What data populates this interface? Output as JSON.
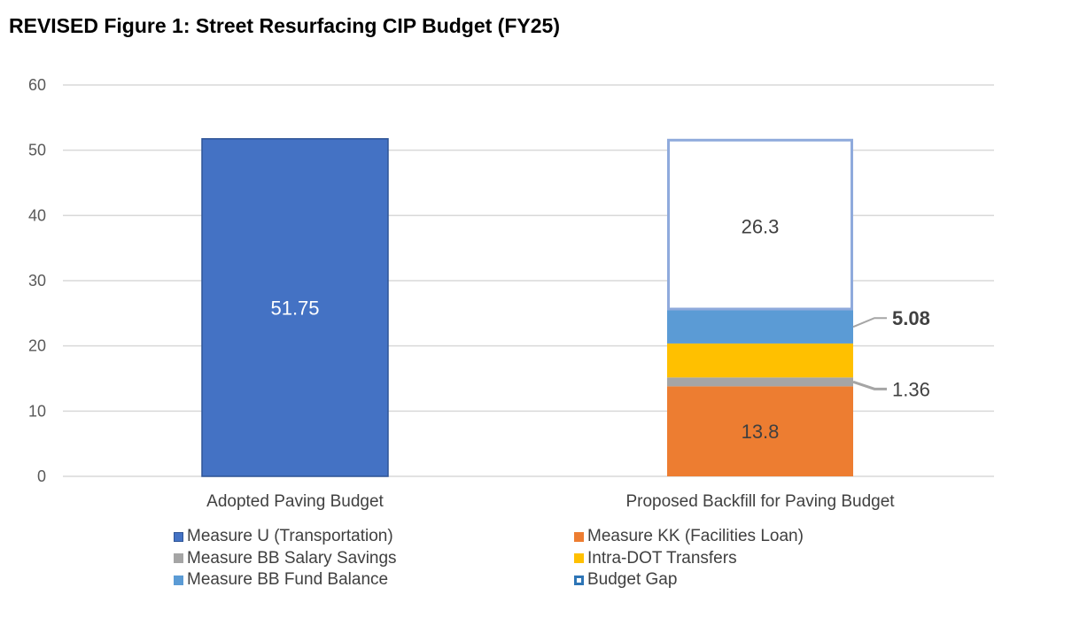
{
  "chart_data": {
    "type": "bar",
    "stacked": true,
    "title": "REVISED Figure 1: Street Resurfacing CIP Budget (FY25)",
    "xlabel": "",
    "ylabel": "",
    "ylim": [
      0,
      60
    ],
    "yticks": [
      0,
      10,
      20,
      30,
      40,
      50,
      60
    ],
    "grid": true,
    "legend_position": "bottom",
    "categories": [
      "Adopted Paving Budget",
      "Proposed Backfill for Paving Budget"
    ],
    "series": [
      {
        "name": "Measure U (Transportation)",
        "color": "#4472C4",
        "values": [
          51.75,
          0
        ],
        "labels": [
          "51.75",
          ""
        ],
        "style": "filled"
      },
      {
        "name": "Measure KK (Facilities Loan)",
        "color": "#ED7D31",
        "values": [
          0,
          13.8
        ],
        "labels": [
          "",
          "13.8"
        ],
        "style": "filled"
      },
      {
        "name": "Measure BB Salary Savings",
        "color": "#A5A5A5",
        "values": [
          0,
          1.36
        ],
        "labels": [
          "",
          "1.36"
        ],
        "style": "filled",
        "label_callout": true
      },
      {
        "name": "Intra-DOT Transfers",
        "color": "#FFC000",
        "values": [
          0,
          5.21
        ],
        "labels": [
          "",
          ""
        ],
        "style": "filled"
      },
      {
        "name": "Measure BB Fund Balance",
        "color": "#5B9BD5",
        "values": [
          0,
          5.08
        ],
        "labels": [
          "",
          "5.08"
        ],
        "style": "filled",
        "label_callout": true,
        "label_bold": true
      },
      {
        "name": "Budget Gap",
        "color": "#8FAADC",
        "values": [
          0,
          26.3
        ],
        "labels": [
          "",
          "26.3"
        ],
        "style": "outline"
      }
    ]
  }
}
